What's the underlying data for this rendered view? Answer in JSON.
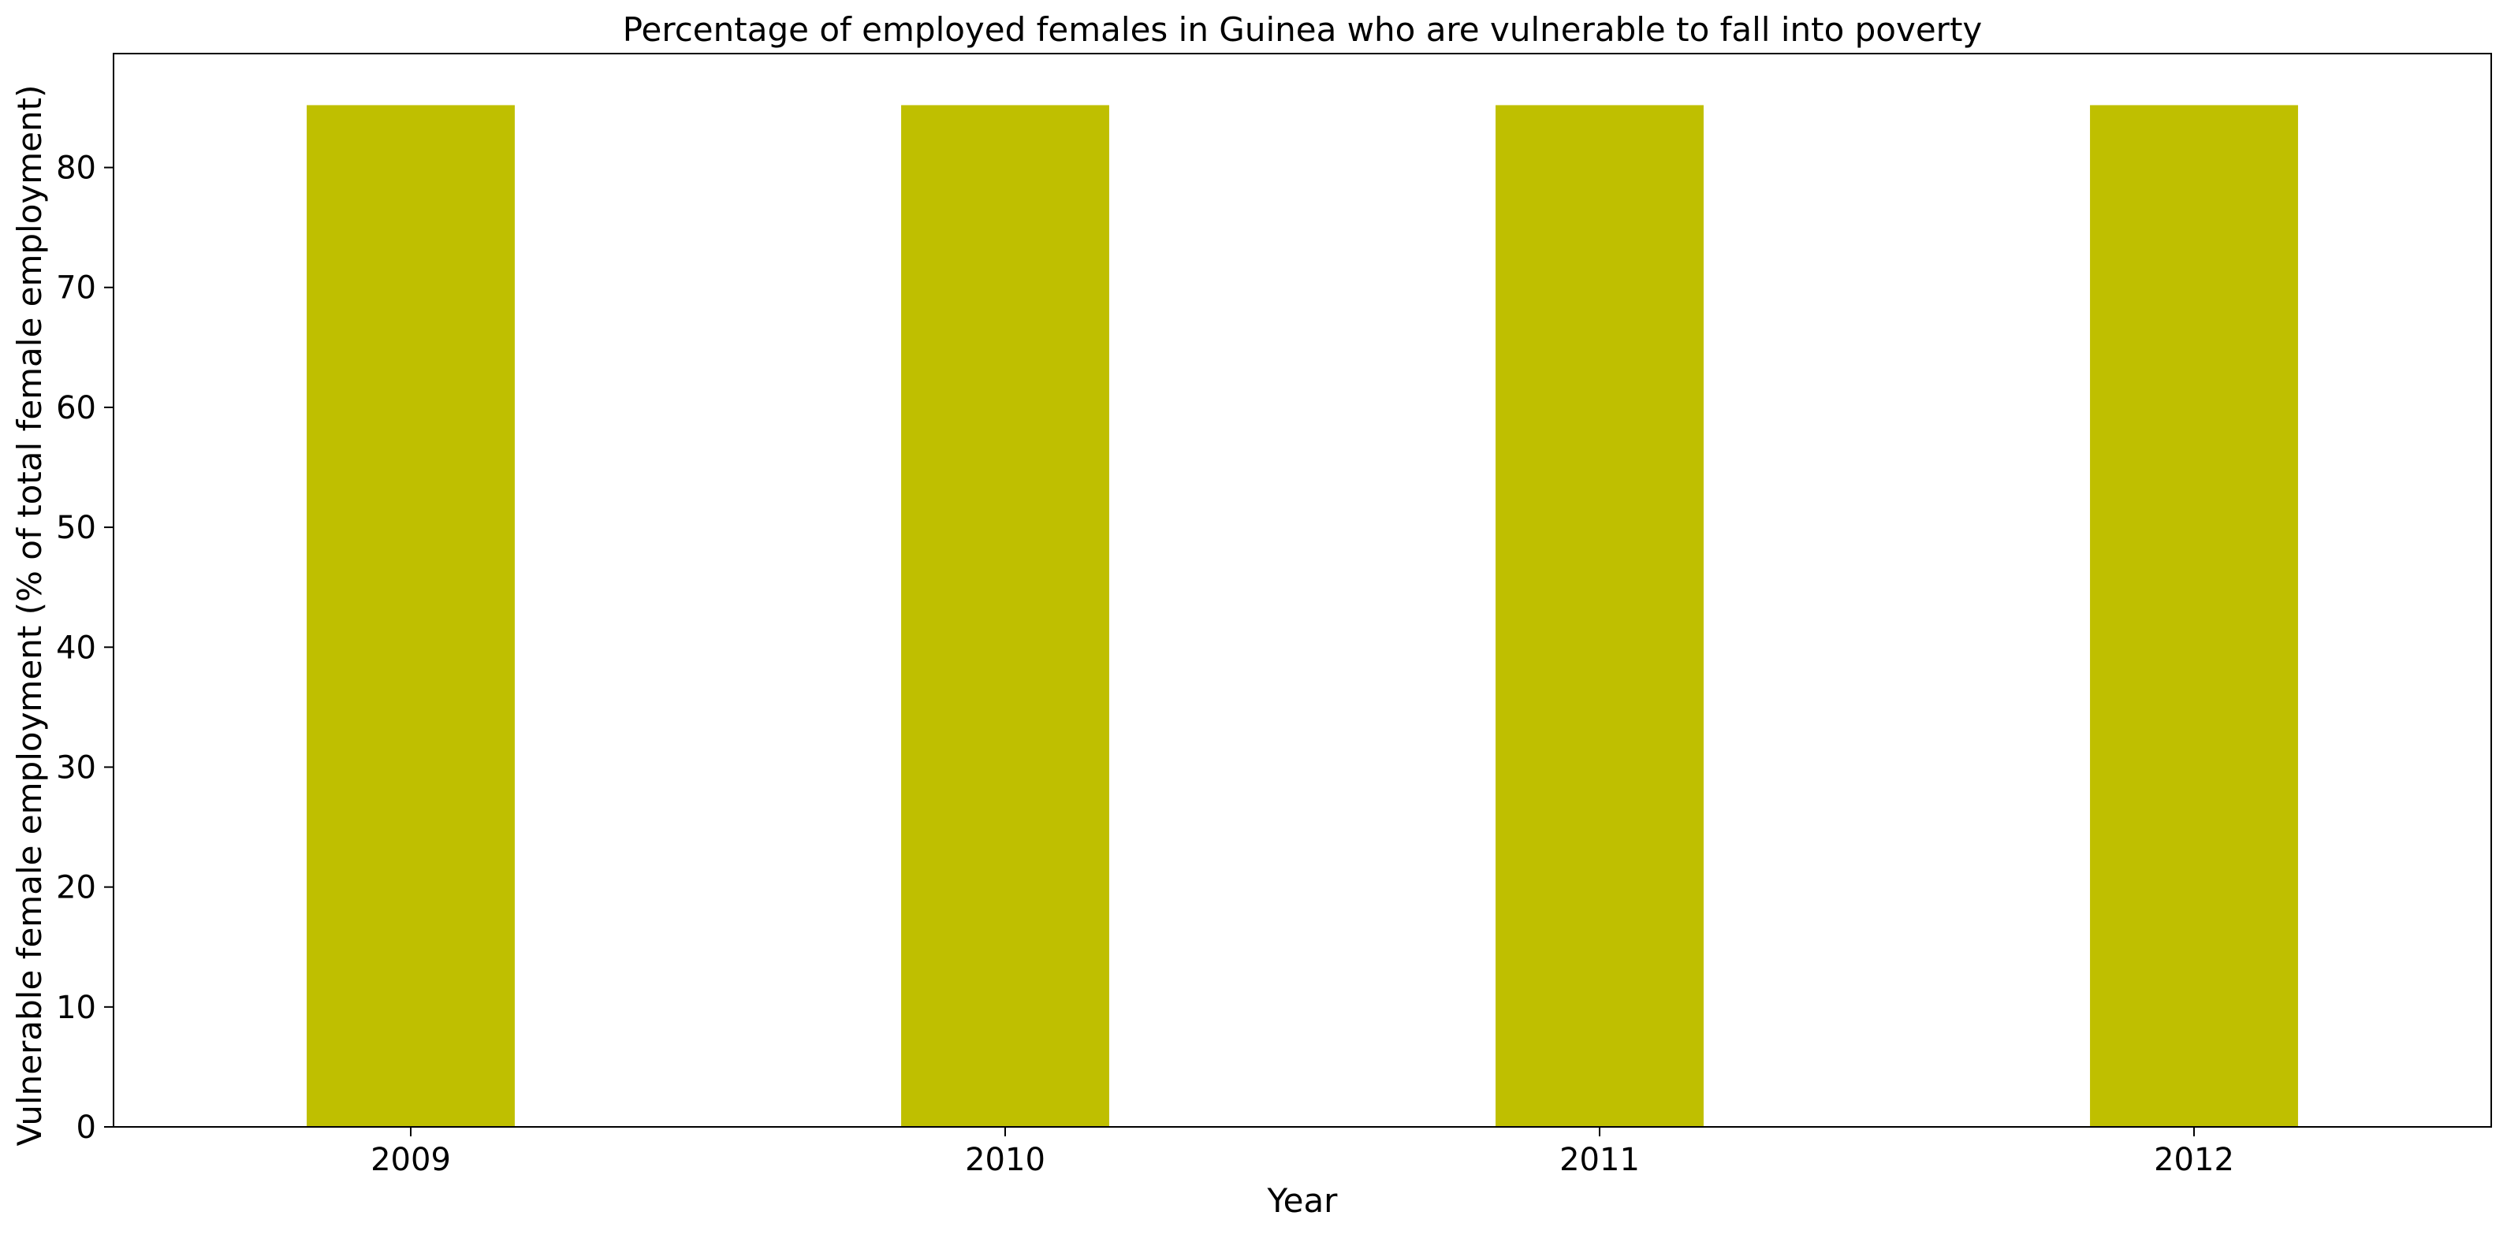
{
  "chart_data": {
    "type": "bar",
    "title": "Percentage of employed females in Guinea who are vulnerable to fall into poverty",
    "xlabel": "Year",
    "ylabel": "Vulnerable female employment (% of total female employment)",
    "categories": [
      "2009",
      "2010",
      "2011",
      "2012"
    ],
    "values": [
      85.2,
      85.2,
      85.2,
      85.2
    ],
    "ylim": [
      0,
      89.5
    ],
    "yticks": [
      0,
      10,
      20,
      30,
      40,
      50,
      60,
      70,
      80
    ],
    "grid": false,
    "legend": "none",
    "bar_color": "#bfbf00"
  }
}
